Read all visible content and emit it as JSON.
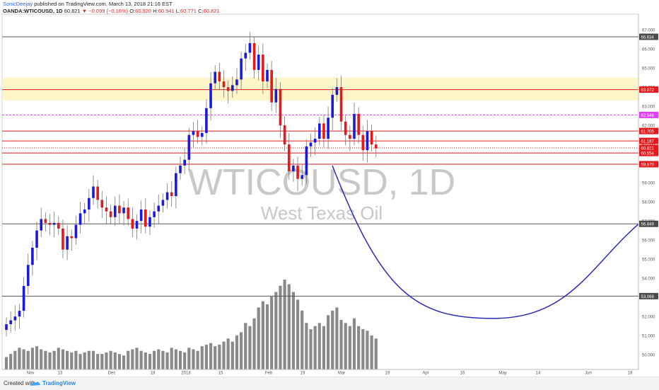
{
  "header": {
    "author": "SonicDeejay",
    "published": "published on TradingView.com, March 13, 2018 21:16 EST",
    "symbol": "OANDA:WTICOUSD, 1D",
    "last": "60.821",
    "change": "−0.099 (−0.16%)",
    "o_label": "O:",
    "o": "60.920",
    "h_label": "H:",
    "h": "60.941",
    "l_label": "L:",
    "l": "60.771",
    "c_label": "C:",
    "c": "60.821"
  },
  "watermark": {
    "symbol": "WTICOUSD, 1D",
    "description": "West Texas Oil"
  },
  "footer": {
    "created": "Created with",
    "brand": "TradingView"
  },
  "colors": {
    "up": "#1a1adc",
    "down": "#e3191b",
    "level": "#e31a1c",
    "grey_level": "#555555",
    "magenta": "#e040fb",
    "zone": "#fdf6c9",
    "curve": "#2a2ab8",
    "volume": "#8a8a8a"
  },
  "chart_data": {
    "type": "candlestick",
    "price_axis": {
      "ylim": [
        49.6,
        67.3
      ],
      "ticks": [
        "50.000",
        "51.000",
        "52.000",
        "53.000",
        "54.000",
        "55.000",
        "56.000",
        "57.000",
        "58.000",
        "59.000",
        "60.000",
        "61.000",
        "62.000",
        "63.000",
        "64.000",
        "65.000",
        "66.000",
        "67.000"
      ]
    },
    "x_axis": {
      "ticks": [
        "Nov",
        "13",
        "Dec",
        "18",
        "2018",
        "15",
        "Feb",
        "19",
        "Mar",
        "19",
        "Apr",
        "16",
        "May",
        "14",
        "Jun",
        "18"
      ]
    },
    "levels": [
      {
        "label": "66.634",
        "value": 66.634,
        "style": "grey"
      },
      {
        "label": "63.872",
        "value": 63.872,
        "style": "red"
      },
      {
        "label": "62.546",
        "value": 62.546,
        "style": "magenta"
      },
      {
        "label": "61.705",
        "value": 61.705,
        "style": "red"
      },
      {
        "label": "61.187",
        "value": 61.187,
        "style": "red"
      },
      {
        "label": "60.821",
        "value": 60.821,
        "style": "current"
      },
      {
        "label": "60.554",
        "value": 60.554,
        "style": "red"
      },
      {
        "label": "59.970",
        "value": 59.97,
        "style": "red"
      },
      {
        "label": "56.849",
        "value": 56.849,
        "style": "grey"
      },
      {
        "label": "53.068",
        "value": 53.068,
        "style": "grey"
      }
    ],
    "zone": [
      63.3,
      64.5
    ],
    "projection": {
      "start": [
        59.9,
        470
      ],
      "bottom": [
        51.9,
        697
      ],
      "end": [
        56.9,
        905
      ]
    },
    "closes": [
      51.6,
      51.8,
      52.0,
      52.3,
      53.6,
      54.7,
      55.6,
      56.5,
      57.1,
      56.9,
      56.8,
      56.9,
      56.6,
      55.5,
      56.2,
      56.1,
      56.8,
      57.4,
      57.6,
      58.2,
      58.8,
      58.1,
      57.7,
      57.5,
      57.2,
      57.8,
      57.4,
      57.7,
      57.1,
      56.6,
      57.0,
      57.6,
      56.7,
      57.2,
      57.5,
      57.8,
      58.1,
      58.5,
      58.3,
      59.5,
      59.9,
      60.2,
      61.5,
      61.7,
      61.4,
      61.6,
      62.9,
      64.2,
      64.8,
      64.3,
      64.0,
      63.8,
      64.1,
      64.4,
      65.5,
      65.8,
      66.3,
      64.9,
      65.7,
      64.3,
      64.9,
      63.2,
      63.9,
      62.0,
      61.0,
      59.6,
      59.9,
      59.2,
      59.4,
      60.9,
      61.1,
      61.3,
      62.1,
      61.3,
      62.4,
      63.6,
      64.0,
      62.2,
      61.5,
      61.3,
      62.6,
      61.5,
      60.7,
      61.7,
      61.0,
      60.8
    ],
    "volume": [
      8,
      10,
      12,
      14,
      13,
      12,
      14,
      15,
      13,
      12,
      11,
      12,
      14,
      13,
      12,
      11,
      12,
      10,
      11,
      12,
      12,
      10,
      10,
      11,
      12,
      11,
      10,
      9,
      12,
      13,
      14,
      12,
      11,
      10,
      12,
      13,
      12,
      11,
      14,
      13,
      12,
      11,
      14,
      13,
      12,
      15,
      16,
      17,
      15,
      16,
      18,
      20,
      18,
      22,
      24,
      30,
      28,
      33,
      40,
      44,
      42,
      47,
      50,
      54,
      58,
      55,
      50,
      45,
      38,
      30,
      26,
      28,
      30,
      28,
      35,
      38,
      40,
      32,
      30,
      28,
      33,
      28,
      26,
      25,
      22,
      20
    ]
  }
}
